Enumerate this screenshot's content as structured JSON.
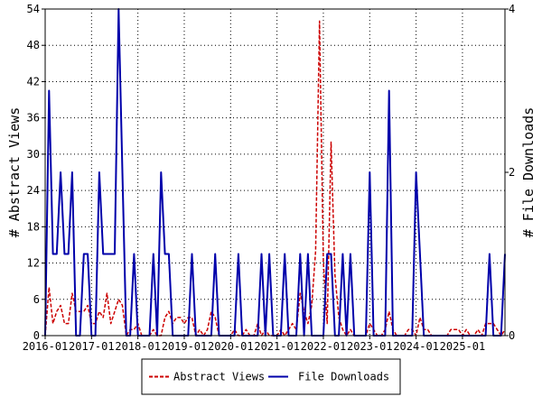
{
  "chart_data": {
    "type": "line",
    "ylabel_left": "# Abstract Views",
    "ylabel_right": "# File Downloads",
    "ylim_left": [
      0,
      54
    ],
    "ylim_right": [
      0,
      4
    ],
    "xlim": [
      "2016-01",
      "2025-12"
    ],
    "yticks_left": [
      "0",
      "6",
      "12",
      "18",
      "24",
      "30",
      "36",
      "42",
      "48",
      "54"
    ],
    "yticks_right": [
      "0",
      "2",
      "4"
    ],
    "xticks": [
      "2016-01",
      "2017-01",
      "2018-01",
      "2019-01",
      "2020-01",
      "2021-01",
      "2022-01",
      "2023-01",
      "2024-01",
      "2025-01"
    ],
    "grid": true,
    "legend_position": "bottom",
    "series": [
      {
        "name": "Abstract Views",
        "axis": "left",
        "color": "#cc0000",
        "style": "dashed",
        "values": [
          0,
          8,
          2,
          4,
          5,
          2,
          2,
          7,
          4,
          4,
          4,
          5,
          2,
          2,
          4,
          3,
          7,
          2,
          4,
          6,
          5,
          0,
          1,
          1,
          2,
          0,
          0,
          0,
          1,
          0,
          0,
          3,
          4,
          2,
          3,
          3,
          2,
          3,
          3,
          0,
          1,
          0,
          1,
          4,
          3,
          0,
          0,
          0,
          0,
          1,
          0,
          0,
          1,
          0,
          0,
          2,
          0,
          1,
          0,
          0,
          0,
          1,
          0,
          1,
          2,
          1,
          7,
          4,
          2,
          5,
          14,
          52,
          12,
          2,
          32,
          10,
          3,
          1,
          0,
          1,
          0,
          0,
          0,
          0,
          2,
          1,
          0,
          0,
          1,
          4,
          1,
          0,
          0,
          0,
          1,
          1,
          0,
          3,
          1,
          1,
          0,
          0,
          0,
          0,
          0,
          1,
          1,
          1,
          0,
          1,
          0,
          0,
          1,
          0,
          2,
          2,
          2,
          1,
          0,
          1
        ]
      },
      {
        "name": "File Downloads",
        "axis": "right",
        "color": "#0000aa",
        "style": "solid",
        "values": [
          0,
          3,
          1,
          1,
          2,
          1,
          1,
          2,
          0,
          0,
          1,
          1,
          0,
          0,
          2,
          1,
          1,
          1,
          1,
          4,
          2,
          0,
          0,
          1,
          0,
          0,
          0,
          0,
          1,
          0,
          2,
          1,
          1,
          0,
          0,
          0,
          0,
          0,
          1,
          0,
          0,
          0,
          0,
          0,
          1,
          0,
          0,
          0,
          0,
          0,
          1,
          0,
          0,
          0,
          0,
          0,
          1,
          0,
          1,
          0,
          0,
          0,
          1,
          0,
          0,
          0,
          1,
          0,
          1,
          0,
          0,
          0,
          0,
          1,
          1,
          0,
          0,
          1,
          0,
          1,
          0,
          0,
          0,
          0,
          2,
          0,
          0,
          0,
          0,
          3,
          0,
          0,
          0,
          0,
          0,
          0,
          2,
          1,
          0,
          0,
          0,
          0,
          0,
          0,
          0,
          0,
          0,
          0,
          0,
          0,
          0,
          0,
          0,
          0,
          0,
          1,
          0,
          0,
          0,
          1
        ]
      }
    ]
  }
}
